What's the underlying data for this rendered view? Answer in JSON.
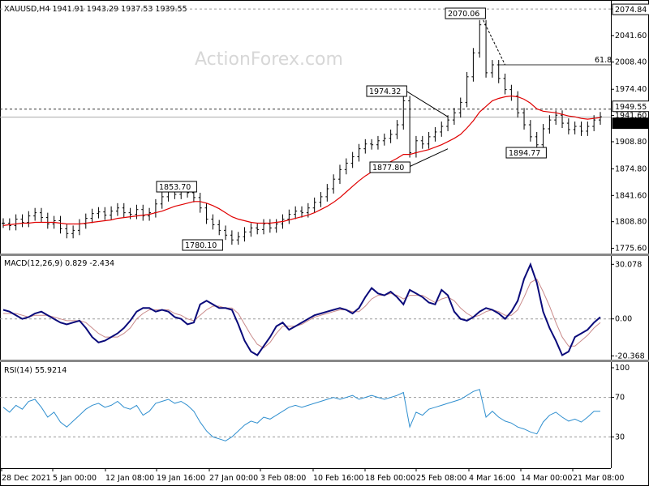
{
  "header": {
    "symbol_line": "XAUUSD,H4  1941.91 1943.29 1937.53 1939.55",
    "watermark": "ActionForex.com"
  },
  "colors": {
    "candles": "#000000",
    "ma": "#e00000",
    "macd": "#0a0a7a",
    "signal": "#c98a8a",
    "rsi": "#2f8fcf",
    "grid_dash": "#9a9a9a"
  },
  "chart_data": [
    {
      "type": "candlestick",
      "title": "XAUUSD,H4",
      "ohlc_last": {
        "open": 1941.91,
        "high": 1943.29,
        "low": 1937.53,
        "close": 1939.55
      },
      "ylim": [
        1770,
        2082
      ],
      "y_ticks": [
        "2074.84",
        "2041.60",
        "2008.40",
        "1974.40",
        "1941.60",
        "1908.80",
        "1874.80",
        "1841.60",
        "1808.80",
        "1775.60"
      ],
      "price_labels": {
        "upper": "1949.55",
        "current": "1939.55"
      },
      "x_ticks": [
        "28 Dec 2021",
        "5 Jan 00:00",
        "12 Jan 08:00",
        "19 Jan 16:00",
        "27 Jan 00:00",
        "3 Feb 08:00",
        "10 Feb 16:00",
        "18 Feb 00:00",
        "25 Feb 08:00",
        "4 Mar 16:00",
        "14 Mar 00:00",
        "21 Mar 08:00"
      ],
      "key_points": [
        {
          "t": 28,
          "label": "1853.70",
          "value": 1853.7
        },
        {
          "t": 36,
          "label": "1780.10",
          "value": 1780.1
        },
        {
          "t": 63,
          "label": "1974.32",
          "value": 1974.32
        },
        {
          "t": 64,
          "label": "1877.80",
          "value": 1877.8
        },
        {
          "t": 75,
          "label": "2070.06",
          "value": 2070.06
        },
        {
          "t": 84,
          "label": "1894.77",
          "value": 1894.77
        }
      ],
      "fib_label": "61.8",
      "fib_level": 2005,
      "close_series": [
        1807,
        1804,
        1812,
        1808,
        1816,
        1820,
        1814,
        1806,
        1810,
        1800,
        1794,
        1798,
        1806,
        1813,
        1819,
        1821,
        1817,
        1822,
        1826,
        1820,
        1818,
        1824,
        1816,
        1820,
        1831,
        1840,
        1846,
        1843,
        1849,
        1845,
        1839,
        1826,
        1812,
        1805,
        1798,
        1792,
        1786,
        1790,
        1796,
        1801,
        1799,
        1806,
        1801,
        1806,
        1812,
        1818,
        1822,
        1820,
        1826,
        1833,
        1840,
        1850,
        1862,
        1874,
        1882,
        1890,
        1900,
        1906,
        1905,
        1910,
        1913,
        1918,
        1930,
        1960,
        1895,
        1910,
        1906,
        1915,
        1921,
        1928,
        1936,
        1945,
        1958,
        1990,
        2020,
        2055,
        1995,
        2005,
        1988,
        1974,
        1966,
        1945,
        1930,
        1915,
        1905,
        1925,
        1936,
        1942,
        1932,
        1924,
        1928,
        1922,
        1928,
        1936,
        1940
      ],
      "ma_series": [
        1804,
        1805,
        1806,
        1807,
        1807,
        1808,
        1808,
        1808,
        1808,
        1807,
        1806,
        1806,
        1806,
        1807,
        1808,
        1809,
        1810,
        1811,
        1813,
        1814,
        1815,
        1816,
        1817,
        1818,
        1820,
        1822,
        1825,
        1828,
        1830,
        1832,
        1834,
        1834,
        1832,
        1829,
        1825,
        1820,
        1815,
        1812,
        1810,
        1808,
        1807,
        1807,
        1807,
        1808,
        1809,
        1811,
        1813,
        1815,
        1817,
        1820,
        1824,
        1828,
        1833,
        1839,
        1846,
        1853,
        1860,
        1866,
        1871,
        1876,
        1880,
        1884,
        1888,
        1893,
        1893,
        1895,
        1897,
        1899,
        1902,
        1905,
        1909,
        1913,
        1918,
        1926,
        1935,
        1946,
        1953,
        1960,
        1963,
        1965,
        1966,
        1965,
        1962,
        1957,
        1950,
        1947,
        1946,
        1945,
        1943,
        1941,
        1940,
        1938,
        1937,
        1938,
        1939
      ]
    },
    {
      "type": "line",
      "title": "MACD(12,26,9) 0.829 -2.434",
      "ylim": [
        -22,
        32
      ],
      "y_ticks": [
        "30.078",
        "0.00",
        "-20.368"
      ],
      "series": [
        {
          "name": "MACD",
          "values": [
            5,
            4,
            2,
            0,
            1,
            3,
            4,
            2,
            0,
            -2,
            -3,
            -2,
            -1,
            -5,
            -10,
            -13,
            -12,
            -10,
            -8,
            -5,
            -1,
            4,
            6,
            6,
            4,
            5,
            4,
            1,
            0,
            -3,
            -2,
            8,
            10,
            8,
            6,
            6,
            5,
            -3,
            -12,
            -18,
            -20,
            -15,
            -10,
            -4,
            -2,
            -6,
            -4,
            -2,
            0,
            2,
            3,
            4,
            5,
            6,
            5,
            3,
            6,
            12,
            17,
            14,
            13,
            15,
            12,
            8,
            16,
            14,
            12,
            9,
            8,
            16,
            13,
            4,
            0,
            -1,
            1,
            4,
            6,
            5,
            3,
            0,
            4,
            10,
            22,
            30,
            20,
            4,
            -5,
            -12,
            -20,
            -18,
            -10,
            -8,
            -6,
            -2,
            1
          ],
          "type": "line"
        },
        {
          "name": "Signal",
          "values": [
            3,
            3,
            3,
            2,
            1,
            2,
            2,
            2,
            1,
            0,
            -1,
            -1,
            -1,
            -2,
            -5,
            -8,
            -10,
            -10,
            -10,
            -8,
            -5,
            0,
            3,
            5,
            5,
            5,
            5,
            3,
            2,
            0,
            -1,
            2,
            5,
            7,
            7,
            6,
            6,
            3,
            -3,
            -9,
            -14,
            -16,
            -13,
            -8,
            -4,
            -4,
            -4,
            -3,
            -1,
            1,
            2,
            3,
            4,
            5,
            5,
            4,
            4,
            7,
            11,
            13,
            13,
            14,
            13,
            11,
            13,
            13,
            13,
            11,
            9,
            11,
            12,
            10,
            6,
            3,
            1,
            2,
            4,
            5,
            4,
            2,
            2,
            5,
            12,
            20,
            22,
            15,
            7,
            -2,
            -10,
            -15,
            -15,
            -12,
            -9,
            -5,
            -2
          ],
          "type": "line"
        }
      ]
    },
    {
      "type": "line",
      "title": "RSI(14) 55.9214",
      "ylim": [
        0,
        100
      ],
      "y_ticks": [
        "100",
        "70",
        "30"
      ],
      "levels": [
        70,
        30
      ],
      "series": [
        {
          "name": "RSI(14)",
          "values": [
            60,
            55,
            62,
            58,
            66,
            68,
            60,
            50,
            55,
            45,
            40,
            46,
            52,
            58,
            62,
            64,
            60,
            62,
            66,
            60,
            58,
            62,
            52,
            56,
            64,
            66,
            68,
            64,
            66,
            62,
            56,
            45,
            36,
            30,
            28,
            26,
            30,
            36,
            42,
            46,
            44,
            50,
            48,
            52,
            56,
            60,
            62,
            60,
            62,
            64,
            66,
            68,
            70,
            68,
            70,
            72,
            68,
            70,
            72,
            70,
            68,
            70,
            72,
            75,
            40,
            55,
            52,
            58,
            60,
            62,
            64,
            66,
            68,
            72,
            76,
            78,
            50,
            56,
            50,
            46,
            44,
            40,
            38,
            35,
            33,
            45,
            52,
            55,
            50,
            46,
            48,
            45,
            50,
            56,
            55.9
          ]
        }
      ]
    }
  ]
}
